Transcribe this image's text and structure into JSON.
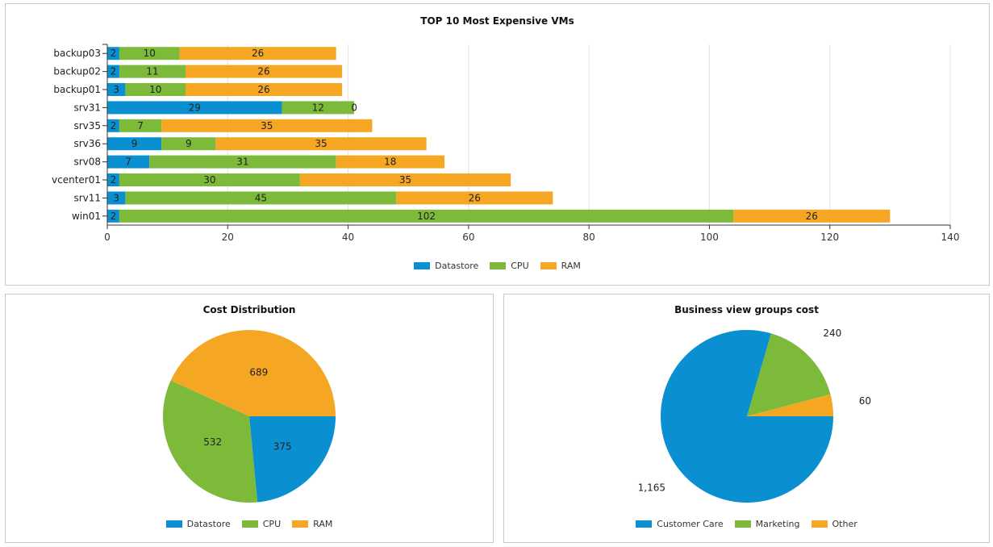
{
  "chart_data": [
    {
      "type": "bar",
      "orientation": "horizontal",
      "stacked": true,
      "title": "TOP 10 Most Expensive VMs",
      "categories": [
        "backup03",
        "backup02",
        "backup01",
        "srv31",
        "srv35",
        "srv36",
        "srv08",
        "vcenter01",
        "srv11",
        "win01"
      ],
      "series": [
        {
          "name": "Datastore",
          "color": "#0a90d0",
          "values": [
            2,
            2,
            3,
            29,
            2,
            9,
            7,
            2,
            3,
            2
          ]
        },
        {
          "name": "CPU",
          "color": "#7dba3a",
          "values": [
            10,
            11,
            10,
            12,
            7,
            9,
            31,
            30,
            45,
            102
          ]
        },
        {
          "name": "RAM",
          "color": "#f5a623",
          "values": [
            26,
            26,
            26,
            0,
            35,
            35,
            18,
            35,
            26,
            26
          ]
        }
      ],
      "xlim": [
        0,
        140
      ],
      "xticks": [
        0,
        20,
        40,
        60,
        80,
        100,
        120,
        140
      ],
      "grid": true,
      "legend_position": "bottom"
    },
    {
      "type": "pie",
      "title": "Cost Distribution",
      "labels": [
        "Datastore",
        "CPU",
        "RAM"
      ],
      "values": [
        375,
        532,
        689
      ],
      "colors": [
        "#0a90d0",
        "#7dba3a",
        "#f5a623"
      ],
      "value_labels": [
        "375",
        "532",
        "689"
      ],
      "legend_position": "bottom"
    },
    {
      "type": "pie",
      "title": "Business view groups cost",
      "labels": [
        "Customer Care",
        "Marketing",
        "Other"
      ],
      "values": [
        1165,
        240,
        60
      ],
      "colors": [
        "#0a90d0",
        "#7dba3a",
        "#f5a623"
      ],
      "value_labels": [
        "1,165",
        "240",
        "60"
      ],
      "legend_position": "bottom"
    }
  ]
}
